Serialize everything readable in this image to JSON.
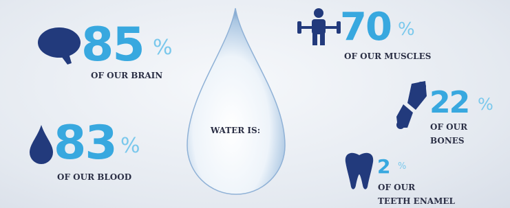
{
  "center_label": "WATER IS:",
  "items": [
    {
      "value": 85,
      "unit": "%",
      "caption": [
        "OF OUR BRAIN"
      ]
    },
    {
      "value": 83,
      "unit": "%",
      "caption": [
        "OF OUR BLOOD"
      ]
    },
    {
      "value": 70,
      "unit": "%",
      "caption": [
        "OF OUR MUSCLES"
      ]
    },
    {
      "value": 22,
      "unit": "%",
      "caption": [
        "OF OUR",
        "BONES"
      ]
    },
    {
      "value": 2,
      "unit": "%",
      "caption": [
        "OF OUR",
        "TEETH ENAMEL"
      ]
    }
  ]
}
